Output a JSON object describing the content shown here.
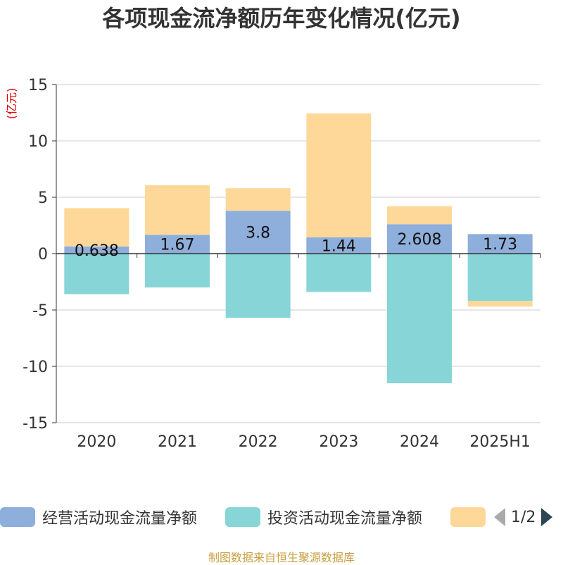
{
  "title": "各项现金流净额历年变化情况(亿元)",
  "source": "制图数据来自恒生聚源数据库",
  "legend_pager": {
    "text": "1/2",
    "prev_icon": "triangle-left-icon",
    "next_icon": "triangle-right-icon"
  },
  "colors": {
    "operating": "#8eaedb",
    "investing": "#87d5d6",
    "financing": "#fed899",
    "axis": "#333333",
    "grid": "#cccccc",
    "unit_label": "#e00000",
    "pager_disabled": "#aaaaaa",
    "pager_active": "#2f4554"
  },
  "chart_data": {
    "type": "bar",
    "stacked": true,
    "ylabel": "(亿元)",
    "ylim": [
      -15,
      15
    ],
    "yticks": [
      15,
      10,
      5,
      0,
      -5,
      -10,
      -15
    ],
    "grid": true,
    "legend_position": "bottom",
    "categories": [
      "2020",
      "2021",
      "2022",
      "2023",
      "2024",
      "2025H1"
    ],
    "series": [
      {
        "name": "经营活动现金流量净额",
        "color_key": "operating",
        "values": [
          0.638,
          1.67,
          3.8,
          1.44,
          2.608,
          1.73
        ],
        "labels": [
          "0.638",
          "1.67",
          "3.8",
          "1.44",
          "2.608",
          "1.73"
        ]
      },
      {
        "name": "投资活动现金流量净额",
        "color_key": "investing",
        "values": [
          -3.6,
          -3.0,
          -5.7,
          -3.4,
          -11.5,
          -4.2
        ]
      },
      {
        "name": "",
        "color_key": "financing",
        "values": [
          3.4,
          4.4,
          2.0,
          11.0,
          1.6,
          -0.5
        ]
      }
    ]
  }
}
